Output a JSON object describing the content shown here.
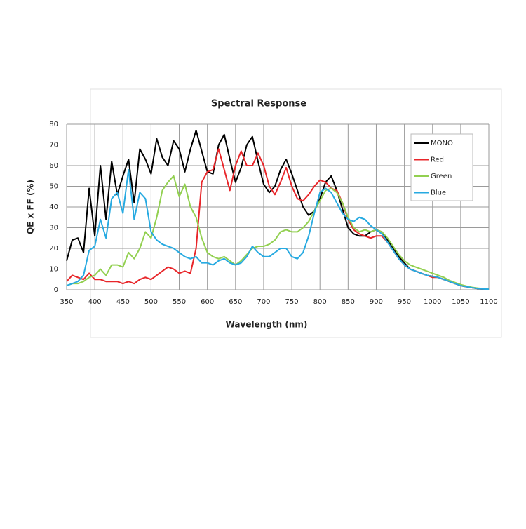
{
  "chart_data": {
    "type": "line",
    "title": "Spectral Response",
    "x_label": "Wavelength (nm)",
    "y_label": "QE x FF (%)",
    "x": [
      350,
      360,
      370,
      380,
      390,
      400,
      410,
      420,
      430,
      440,
      450,
      460,
      470,
      480,
      490,
      500,
      510,
      520,
      530,
      540,
      550,
      560,
      570,
      580,
      590,
      600,
      610,
      620,
      630,
      640,
      650,
      660,
      670,
      680,
      690,
      700,
      710,
      720,
      730,
      740,
      750,
      760,
      770,
      780,
      790,
      800,
      810,
      820,
      830,
      840,
      850,
      860,
      870,
      880,
      890,
      900,
      910,
      920,
      930,
      940,
      950,
      960,
      970,
      980,
      990,
      1000,
      1010,
      1020,
      1030,
      1040,
      1050,
      1060,
      1070,
      1080,
      1090,
      1100
    ],
    "series": [
      {
        "name": "MONO",
        "color": "#000000",
        "values": [
          14,
          24,
          25,
          18,
          49,
          26,
          60,
          34,
          62,
          46,
          55,
          63,
          42,
          68,
          63,
          56,
          73,
          64,
          60,
          72,
          68,
          57,
          68,
          77,
          67,
          57,
          56,
          70,
          75,
          63,
          52,
          59,
          70,
          74,
          62,
          51,
          47,
          50,
          58,
          63,
          56,
          48,
          40,
          36,
          38,
          44,
          52,
          55,
          48,
          39,
          30,
          27,
          26,
          26,
          28,
          29,
          28,
          24,
          20,
          16,
          13,
          10,
          9,
          8,
          7,
          6.5,
          6,
          5,
          4,
          3,
          2,
          1.5,
          1,
          0.6,
          0.4,
          0.3
        ]
      },
      {
        "name": "Red",
        "color": "#e8262a",
        "values": [
          4,
          7,
          6,
          5,
          8,
          5,
          5,
          4,
          4,
          4,
          3,
          4,
          3,
          5,
          6,
          5,
          7,
          9,
          11,
          10,
          8,
          9,
          8,
          20,
          52,
          57,
          58,
          68,
          58,
          48,
          60,
          67,
          60,
          60,
          66,
          60,
          50,
          46,
          52,
          59,
          50,
          44,
          43,
          46,
          50,
          53,
          52,
          49,
          48,
          42,
          34,
          29,
          27,
          26,
          25,
          26,
          26,
          23,
          19,
          15,
          12,
          10,
          9,
          8,
          7,
          6,
          6,
          5,
          4,
          3,
          2,
          1.5,
          1,
          0.6,
          0.4,
          0.3
        ]
      },
      {
        "name": "Green",
        "color": "#92d050",
        "values": [
          2,
          3,
          3,
          4,
          6,
          7,
          10,
          7,
          12,
          12,
          11,
          18,
          15,
          20,
          28,
          25,
          35,
          48,
          52,
          55,
          45,
          51,
          40,
          35,
          25,
          18,
          16,
          15,
          16,
          14,
          12,
          14,
          17,
          20,
          21,
          21,
          22,
          24,
          28,
          29,
          28,
          28,
          30,
          33,
          38,
          43,
          48,
          49,
          47,
          42,
          35,
          30,
          28,
          29,
          28,
          29,
          28,
          25,
          21,
          17,
          14,
          12,
          11,
          10,
          9,
          8,
          7,
          6,
          4.5,
          3.5,
          2.5,
          1.8,
          1.2,
          0.8,
          0.5,
          0.4
        ]
      },
      {
        "name": "Blue",
        "color": "#27aae1",
        "values": [
          2,
          3,
          4,
          7,
          19,
          21,
          34,
          25,
          44,
          47,
          37,
          58,
          34,
          47,
          44,
          28,
          24,
          22,
          21,
          20,
          18,
          16,
          15,
          16,
          13,
          13,
          12,
          14,
          15,
          13,
          12,
          13,
          16,
          21,
          18,
          16,
          16,
          18,
          20,
          20,
          16,
          15,
          18,
          26,
          37,
          47,
          49,
          47,
          42,
          37,
          34,
          33,
          35,
          34,
          31,
          29,
          27,
          23,
          19,
          15,
          12,
          10,
          9,
          8,
          7,
          6.5,
          6,
          5,
          4,
          3,
          2,
          1.5,
          1,
          0.6,
          0.4,
          0.3
        ]
      }
    ],
    "xlim": [
      350,
      1100
    ],
    "xticks": [
      350,
      400,
      450,
      500,
      550,
      600,
      650,
      700,
      750,
      800,
      850,
      900,
      950,
      1000,
      1050,
      1100
    ],
    "ylim": [
      0,
      80
    ],
    "yticks": [
      0,
      10,
      20,
      30,
      40,
      50,
      60,
      70,
      80
    ],
    "grid": true,
    "legend": "upper right"
  }
}
